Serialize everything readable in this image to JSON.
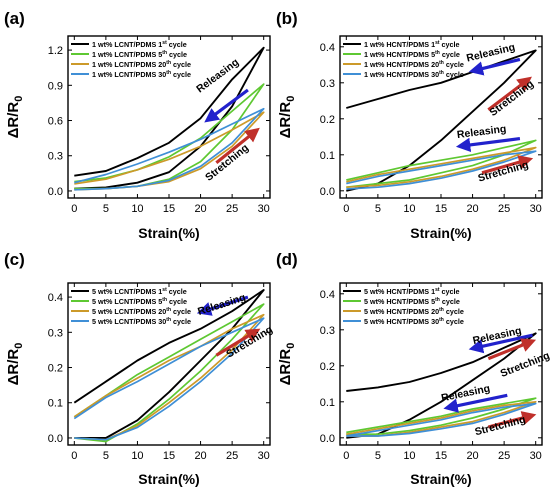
{
  "chart_data": [
    {
      "type": "line",
      "panel_label": "(a)",
      "xlabel": "Strain(%)",
      "ylabel_main": "ΔR/R",
      "ylabel_sub": "0",
      "xlim": [
        -1,
        31
      ],
      "ylim": [
        -0.06,
        1.32
      ],
      "xticks": [
        0,
        5,
        10,
        15,
        20,
        25,
        30
      ],
      "yticks": [
        0.0,
        0.3,
        0.6,
        0.9,
        1.2
      ],
      "ytick_labels": [
        "0.0",
        "0.3",
        "0.6",
        "0.9",
        "1.2"
      ],
      "legend": {
        "position": "top-left",
        "entries": [
          {
            "prefix": "1 wt% LCNT/PDMS 1",
            "sup": "st",
            "suffix": " cycle",
            "color": "#000000"
          },
          {
            "prefix": "1 wt% LCNT/PDMS 5",
            "sup": "th",
            "suffix": " cycle",
            "color": "#5ec832"
          },
          {
            "prefix": "1 wt% LCNT/PDMS 20",
            "sup": "th",
            "suffix": " cycle",
            "color": "#cc9a2a"
          },
          {
            "prefix": "1 wt% LCNT/PDMS 30",
            "sup": "th",
            "suffix": " cycle",
            "color": "#3f8fd6"
          }
        ]
      },
      "annotations": [
        {
          "text": "Releasing",
          "color": "#1a1a1a",
          "x": 23,
          "y": 0.96,
          "arrow_color": "#2222cc",
          "arrow": [
            [
              27.5,
              0.86
            ],
            [
              21.5,
              0.62
            ]
          ]
        },
        {
          "text": "Stretching",
          "color": "#1a1a1a",
          "x": 24.5,
          "y": 0.22,
          "arrow_color": "#c0302a",
          "arrow": [
            [
              22.5,
              0.24
            ],
            [
              28.5,
              0.5
            ]
          ]
        }
      ],
      "series": [
        {
          "color": "#000000",
          "load_x": [
            0,
            5,
            10,
            15,
            20,
            25,
            30
          ],
          "load_y": [
            0.02,
            0.03,
            0.07,
            0.16,
            0.38,
            0.72,
            1.22
          ],
          "unload_x": [
            30,
            25,
            20,
            15,
            10,
            5,
            0
          ],
          "unload_y": [
            1.22,
            0.95,
            0.62,
            0.41,
            0.28,
            0.17,
            0.13
          ]
        },
        {
          "color": "#5ec832",
          "load_x": [
            0,
            5,
            10,
            15,
            20,
            25,
            30
          ],
          "load_y": [
            0.02,
            0.02,
            0.04,
            0.1,
            0.25,
            0.52,
            0.91
          ],
          "unload_x": [
            30,
            25,
            20,
            15,
            10,
            5,
            0
          ],
          "unload_y": [
            0.91,
            0.68,
            0.45,
            0.29,
            0.18,
            0.11,
            0.08
          ]
        },
        {
          "color": "#cc9a2a",
          "load_x": [
            0,
            5,
            10,
            15,
            20,
            25,
            30
          ],
          "load_y": [
            0.01,
            0.02,
            0.04,
            0.08,
            0.19,
            0.38,
            0.67
          ],
          "unload_x": [
            30,
            25,
            20,
            15,
            10,
            5,
            0
          ],
          "unload_y": [
            0.67,
            0.52,
            0.38,
            0.27,
            0.18,
            0.1,
            0.06
          ]
        },
        {
          "color": "#3f8fd6",
          "load_x": [
            0,
            5,
            10,
            15,
            20,
            25,
            30
          ],
          "load_y": [
            0.01,
            0.02,
            0.04,
            0.09,
            0.21,
            0.41,
            0.7
          ],
          "unload_x": [
            30,
            25,
            20,
            15,
            10,
            5,
            0
          ],
          "unload_y": [
            0.7,
            0.57,
            0.44,
            0.33,
            0.23,
            0.14,
            0.07
          ]
        }
      ]
    },
    {
      "type": "line",
      "panel_label": "(b)",
      "xlabel": "Strain(%)",
      "ylabel_main": "ΔR/R",
      "ylabel_sub": "0",
      "xlim": [
        -1,
        31
      ],
      "ylim": [
        -0.02,
        0.43
      ],
      "xticks": [
        0,
        5,
        10,
        15,
        20,
        25,
        30
      ],
      "yticks": [
        0.0,
        0.1,
        0.2,
        0.3,
        0.4
      ],
      "ytick_labels": [
        "0.0",
        "0.1",
        "0.2",
        "0.3",
        "0.4"
      ],
      "legend": {
        "position": "top-left",
        "entries": [
          {
            "prefix": "1 wt% HCNT/PDMS 1",
            "sup": "st",
            "suffix": " cycle",
            "color": "#000000"
          },
          {
            "prefix": "1 wt% HCNT/PDMS 5",
            "sup": "th",
            "suffix": " cycle",
            "color": "#5ec832"
          },
          {
            "prefix": "1 wt% HCNT/PDMS 20",
            "sup": "th",
            "suffix": " cycle",
            "color": "#cc9a2a"
          },
          {
            "prefix": "1 wt% HCNT/PDMS 30",
            "sup": "th",
            "suffix": " cycle",
            "color": "#3f8fd6"
          }
        ]
      },
      "annotations": [
        {
          "text": "Releasing",
          "color": "#1a1a1a",
          "x": 23,
          "y": 0.375,
          "arrow_color": "#2222cc",
          "arrow": [
            [
              27.5,
              0.365
            ],
            [
              20.5,
              0.335
            ]
          ]
        },
        {
          "text": "Stretching",
          "color": "#1a1a1a",
          "x": 26.5,
          "y": 0.25,
          "arrow_color": "#c0302a",
          "arrow": [
            [
              22.5,
              0.225
            ],
            [
              28.5,
              0.305
            ]
          ]
        },
        {
          "text": "Releasing",
          "color": "#1a1a1a",
          "x": 21.5,
          "y": 0.155,
          "arrow_color": "#2222cc",
          "arrow": [
            [
              27.5,
              0.145
            ],
            [
              18.5,
              0.125
            ]
          ]
        },
        {
          "text": "Stretching",
          "color": "#1a1a1a",
          "x": 25,
          "y": 0.045,
          "arrow_color": "#c0302a",
          "arrow": [
            [
              21.5,
              0.05
            ],
            [
              28.5,
              0.085
            ]
          ]
        }
      ],
      "series": [
        {
          "color": "#000000",
          "load_x": [
            0,
            5,
            10,
            15,
            20,
            25,
            30
          ],
          "load_y": [
            0.0,
            0.02,
            0.07,
            0.14,
            0.22,
            0.3,
            0.39
          ],
          "unload_x": [
            30,
            25,
            20,
            15,
            10,
            5,
            0
          ],
          "unload_y": [
            0.39,
            0.36,
            0.33,
            0.3,
            0.28,
            0.255,
            0.23
          ]
        },
        {
          "color": "#5ec832",
          "load_x": [
            0,
            5,
            10,
            15,
            20,
            25,
            30
          ],
          "load_y": [
            0.01,
            0.02,
            0.03,
            0.05,
            0.07,
            0.1,
            0.14
          ],
          "unload_x": [
            30,
            25,
            20,
            15,
            10,
            5,
            0
          ],
          "unload_y": [
            0.14,
            0.12,
            0.1,
            0.085,
            0.07,
            0.05,
            0.03
          ]
        },
        {
          "color": "#cc9a2a",
          "load_x": [
            0,
            5,
            10,
            15,
            20,
            25,
            30
          ],
          "load_y": [
            0.01,
            0.015,
            0.025,
            0.04,
            0.06,
            0.085,
            0.12
          ],
          "unload_x": [
            30,
            25,
            20,
            15,
            10,
            5,
            0
          ],
          "unload_y": [
            0.12,
            0.105,
            0.09,
            0.075,
            0.06,
            0.045,
            0.025
          ]
        },
        {
          "color": "#3f8fd6",
          "load_x": [
            0,
            5,
            10,
            15,
            20,
            25,
            30
          ],
          "load_y": [
            0.005,
            0.01,
            0.02,
            0.035,
            0.055,
            0.08,
            0.11
          ],
          "unload_x": [
            30,
            25,
            20,
            15,
            10,
            5,
            0
          ],
          "unload_y": [
            0.11,
            0.1,
            0.085,
            0.07,
            0.055,
            0.04,
            0.02
          ]
        }
      ]
    },
    {
      "type": "line",
      "panel_label": "(c)",
      "xlabel": "Strain(%)",
      "ylabel_main": "ΔR/R",
      "ylabel_sub": "0",
      "xlim": [
        -1,
        31
      ],
      "ylim": [
        -0.02,
        0.44
      ],
      "xticks": [
        0,
        5,
        10,
        15,
        20,
        25,
        30
      ],
      "yticks": [
        0.0,
        0.1,
        0.2,
        0.3,
        0.4
      ],
      "ytick_labels": [
        "0.0",
        "0.1",
        "0.2",
        "0.3",
        "0.4"
      ],
      "legend": {
        "position": "top-left",
        "entries": [
          {
            "prefix": "5 wt% LCNT/PDMS 1",
            "sup": "st",
            "suffix": "   cycle",
            "color": "#000000"
          },
          {
            "prefix": "5 wt% LCNT/PDMS 5",
            "sup": "th",
            "suffix": "   cycle",
            "color": "#5ec832"
          },
          {
            "prefix": "5 wt% LCNT/PDMS 20",
            "sup": "th",
            "suffix": " cycle",
            "color": "#cc9a2a"
          },
          {
            "prefix": "5 wt% LCNT/PDMS 30",
            "sup": "th",
            "suffix": " cycle",
            "color": "#3f8fd6"
          }
        ]
      },
      "annotations": [
        {
          "text": "Releasing",
          "color": "#1a1a1a",
          "x": 23.5,
          "y": 0.37,
          "arrow_color": "#2222cc",
          "arrow": [
            [
              27.5,
              0.4
            ],
            [
              20.5,
              0.36
            ]
          ]
        },
        {
          "text": "Stretching",
          "color": "#1a1a1a",
          "x": 28,
          "y": 0.265,
          "arrow_color": "#c0302a",
          "arrow": [
            [
              22.5,
              0.235
            ],
            [
              28.5,
              0.3
            ]
          ]
        }
      ],
      "series": [
        {
          "color": "#000000",
          "load_x": [
            0,
            5,
            10,
            15,
            20,
            25,
            30
          ],
          "load_y": [
            0.0,
            0.0,
            0.05,
            0.13,
            0.22,
            0.31,
            0.42
          ],
          "unload_x": [
            30,
            25,
            20,
            15,
            10,
            5,
            0
          ],
          "unload_y": [
            0.42,
            0.36,
            0.31,
            0.27,
            0.22,
            0.16,
            0.1
          ]
        },
        {
          "color": "#5ec832",
          "load_x": [
            0,
            5,
            10,
            15,
            20,
            25,
            30
          ],
          "load_y": [
            0.0,
            -0.01,
            0.04,
            0.11,
            0.19,
            0.28,
            0.38
          ],
          "unload_x": [
            30,
            25,
            20,
            15,
            10,
            5,
            0
          ],
          "unload_y": [
            0.38,
            0.33,
            0.28,
            0.23,
            0.18,
            0.12,
            0.06
          ]
        },
        {
          "color": "#cc9a2a",
          "load_x": [
            0,
            5,
            10,
            15,
            20,
            25,
            30
          ],
          "load_y": [
            0.0,
            -0.005,
            0.035,
            0.1,
            0.17,
            0.25,
            0.35
          ],
          "unload_x": [
            30,
            25,
            20,
            15,
            10,
            5,
            0
          ],
          "unload_y": [
            0.35,
            0.31,
            0.26,
            0.22,
            0.17,
            0.12,
            0.06
          ]
        },
        {
          "color": "#3f8fd6",
          "load_x": [
            0,
            5,
            10,
            15,
            20,
            25,
            30
          ],
          "load_y": [
            0.0,
            -0.005,
            0.03,
            0.09,
            0.16,
            0.24,
            0.34
          ],
          "unload_x": [
            30,
            25,
            20,
            15,
            10,
            5,
            0
          ],
          "unload_y": [
            0.34,
            0.3,
            0.26,
            0.21,
            0.16,
            0.115,
            0.055
          ]
        }
      ]
    },
    {
      "type": "line",
      "panel_label": "(d)",
      "xlabel": "Strain(%)",
      "ylabel_main": "ΔR/R",
      "ylabel_sub": "0",
      "xlim": [
        -1,
        31
      ],
      "ylim": [
        -0.02,
        0.43
      ],
      "xticks": [
        0,
        5,
        10,
        15,
        20,
        25,
        30
      ],
      "yticks": [
        0.0,
        0.1,
        0.2,
        0.3,
        0.4
      ],
      "ytick_labels": [
        "0.0",
        "0.1",
        "0.2",
        "0.3",
        "0.4"
      ],
      "legend": {
        "position": "top-left",
        "entries": [
          {
            "prefix": "5 wt% HCNT/PDMS 1",
            "sup": "st",
            "suffix": " cycle",
            "color": "#000000"
          },
          {
            "prefix": "5 wt% HCNT/PDMS 5",
            "sup": "th",
            "suffix": " cycle",
            "color": "#5ec832"
          },
          {
            "prefix": "5 wt% HCNT/PDMS 20",
            "sup": "th",
            "suffix": " cycle",
            "color": "#cc9a2a"
          },
          {
            "prefix": "5 wt% HCNT/PDMS 30",
            "sup": "th",
            "suffix": " cycle",
            "color": "#3f8fd6"
          }
        ]
      },
      "annotations": [
        {
          "text": "Releasing",
          "color": "#1a1a1a",
          "x": 24,
          "y": 0.275,
          "arrow_color": "#2222cc",
          "arrow": [
            [
              29.5,
              0.285
            ],
            [
              20.5,
              0.25
            ]
          ]
        },
        {
          "text": "Stretching",
          "color": "#1a1a1a",
          "x": 28.5,
          "y": 0.195,
          "arrow_color": "#c0302a",
          "arrow": [
            [
              22.5,
              0.22
            ],
            [
              29,
              0.265
            ]
          ]
        },
        {
          "text": "Releasing",
          "color": "#1a1a1a",
          "x": 19,
          "y": 0.115,
          "arrow_color": "#2222cc",
          "arrow": [
            [
              25.5,
              0.118
            ],
            [
              16.5,
              0.085
            ]
          ]
        },
        {
          "text": "Stretching",
          "color": "#1a1a1a",
          "x": 24.5,
          "y": 0.025,
          "arrow_color": "#c0302a",
          "arrow": [
            [
              22.5,
              0.03
            ],
            [
              29,
              0.06
            ]
          ]
        }
      ],
      "series": [
        {
          "color": "#000000",
          "load_x": [
            0,
            5,
            10,
            15,
            20,
            25,
            30
          ],
          "load_y": [
            0.0,
            0.01,
            0.05,
            0.1,
            0.16,
            0.22,
            0.29
          ],
          "unload_x": [
            30,
            25,
            20,
            15,
            10,
            5,
            0
          ],
          "unload_y": [
            0.29,
            0.25,
            0.21,
            0.18,
            0.155,
            0.14,
            0.13
          ]
        },
        {
          "color": "#5ec832",
          "load_x": [
            0,
            5,
            10,
            15,
            20,
            25,
            30
          ],
          "load_y": [
            0.01,
            0.01,
            0.02,
            0.035,
            0.055,
            0.08,
            0.11
          ],
          "unload_x": [
            30,
            25,
            20,
            15,
            10,
            5,
            0
          ],
          "unload_y": [
            0.11,
            0.095,
            0.08,
            0.06,
            0.045,
            0.03,
            0.015
          ]
        },
        {
          "color": "#cc9a2a",
          "load_x": [
            0,
            5,
            10,
            15,
            20,
            25,
            30
          ],
          "load_y": [
            0.005,
            0.005,
            0.015,
            0.03,
            0.045,
            0.07,
            0.1
          ],
          "unload_x": [
            30,
            25,
            20,
            15,
            10,
            5,
            0
          ],
          "unload_y": [
            0.1,
            0.09,
            0.075,
            0.055,
            0.04,
            0.025,
            0.01
          ]
        },
        {
          "color": "#3f8fd6",
          "load_x": [
            0,
            5,
            10,
            15,
            20,
            25,
            30
          ],
          "load_y": [
            0.005,
            0.005,
            0.012,
            0.025,
            0.04,
            0.065,
            0.095
          ],
          "unload_x": [
            30,
            25,
            20,
            15,
            10,
            5,
            0
          ],
          "unload_y": [
            0.095,
            0.085,
            0.07,
            0.05,
            0.035,
            0.02,
            0.005
          ]
        }
      ]
    }
  ]
}
